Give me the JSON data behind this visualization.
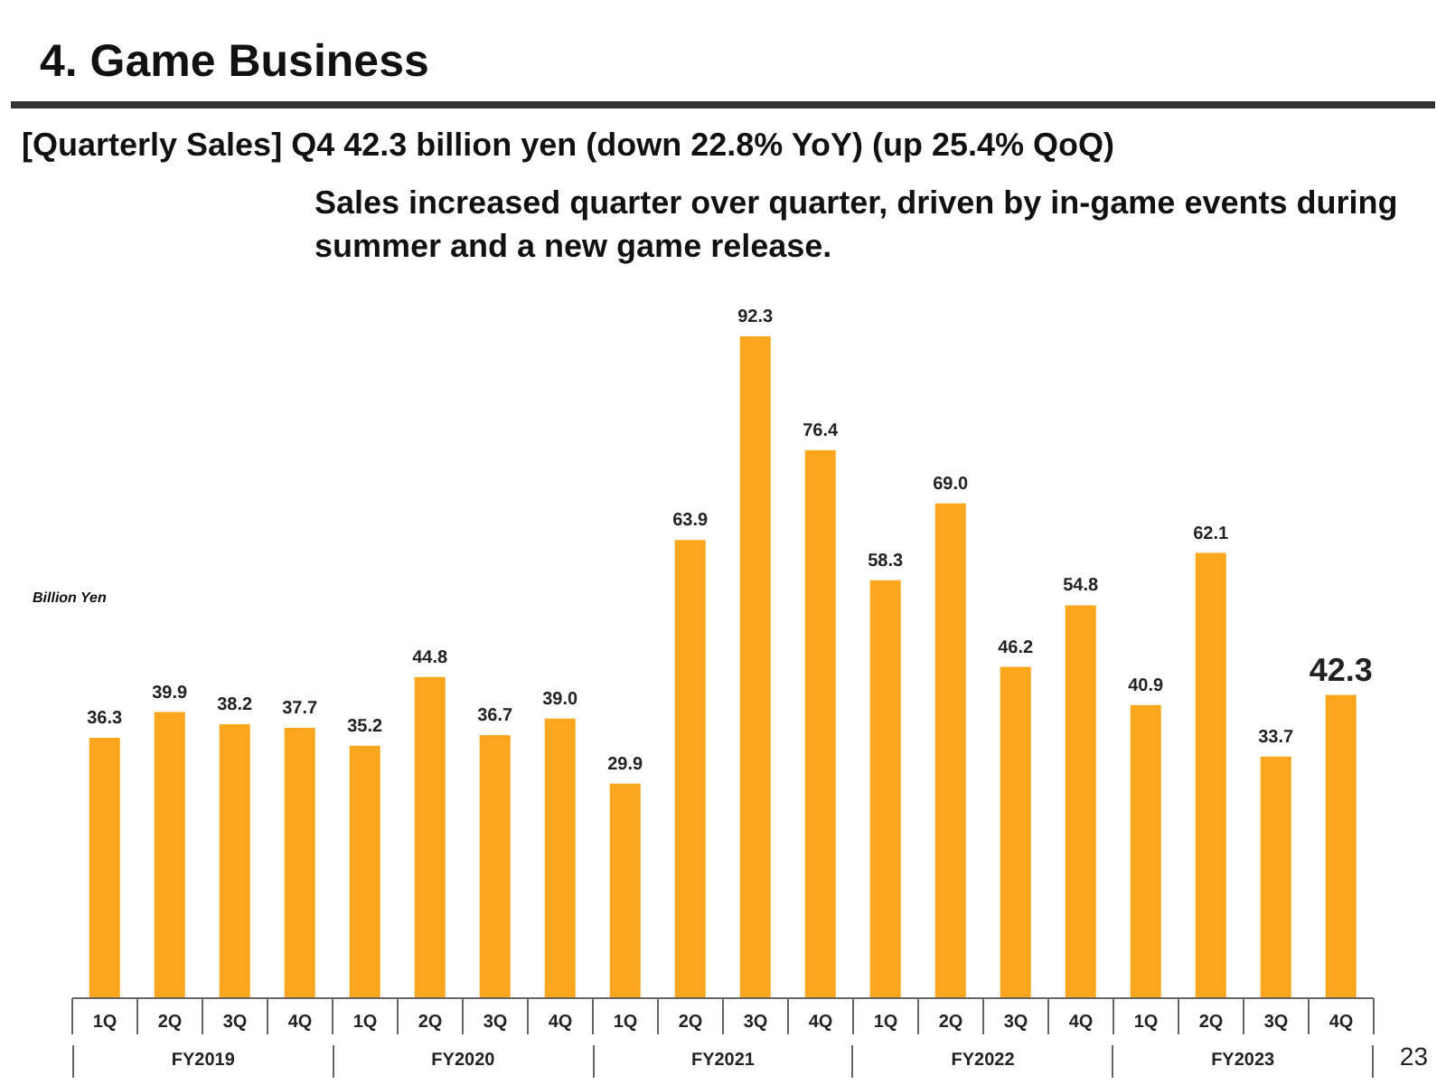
{
  "chart_data": {
    "type": "bar",
    "title": "4.   Game Business",
    "subtitle": "[Quarterly Sales] Q4 42.3 billion yen (down 22.8% YoY) (up 25.4% QoQ)",
    "ylabel": "Billion Yen",
    "categories": [
      "1Q",
      "2Q",
      "3Q",
      "4Q",
      "1Q",
      "2Q",
      "3Q",
      "4Q",
      "1Q",
      "2Q",
      "3Q",
      "4Q",
      "1Q",
      "2Q",
      "3Q",
      "4Q",
      "1Q",
      "2Q",
      "3Q",
      "4Q"
    ],
    "values": [
      36.3,
      39.9,
      38.2,
      37.7,
      35.2,
      44.8,
      36.7,
      39.0,
      29.9,
      63.9,
      92.3,
      76.4,
      58.3,
      69.0,
      46.2,
      54.8,
      40.9,
      62.1,
      33.7,
      42.3
    ],
    "value_labels": [
      "36.3",
      "39.9",
      "38.2",
      "37.7",
      "35.2",
      "44.8",
      "36.7",
      "39.0",
      "29.9",
      "63.9",
      "92.3",
      "76.4",
      "58.3",
      "69.0",
      "46.2",
      "54.8",
      "40.9",
      "62.1",
      "33.7",
      "42.3"
    ],
    "color": "#fba61c",
    "grid": false,
    "legend": false,
    "annotations": [
      "Sales increased quarter over quarter, driven by in-game events during summer and a new game release.",
      "FY2019",
      "FY2020",
      "FY2021",
      "FY2022",
      "FY2023",
      "23"
    ]
  }
}
